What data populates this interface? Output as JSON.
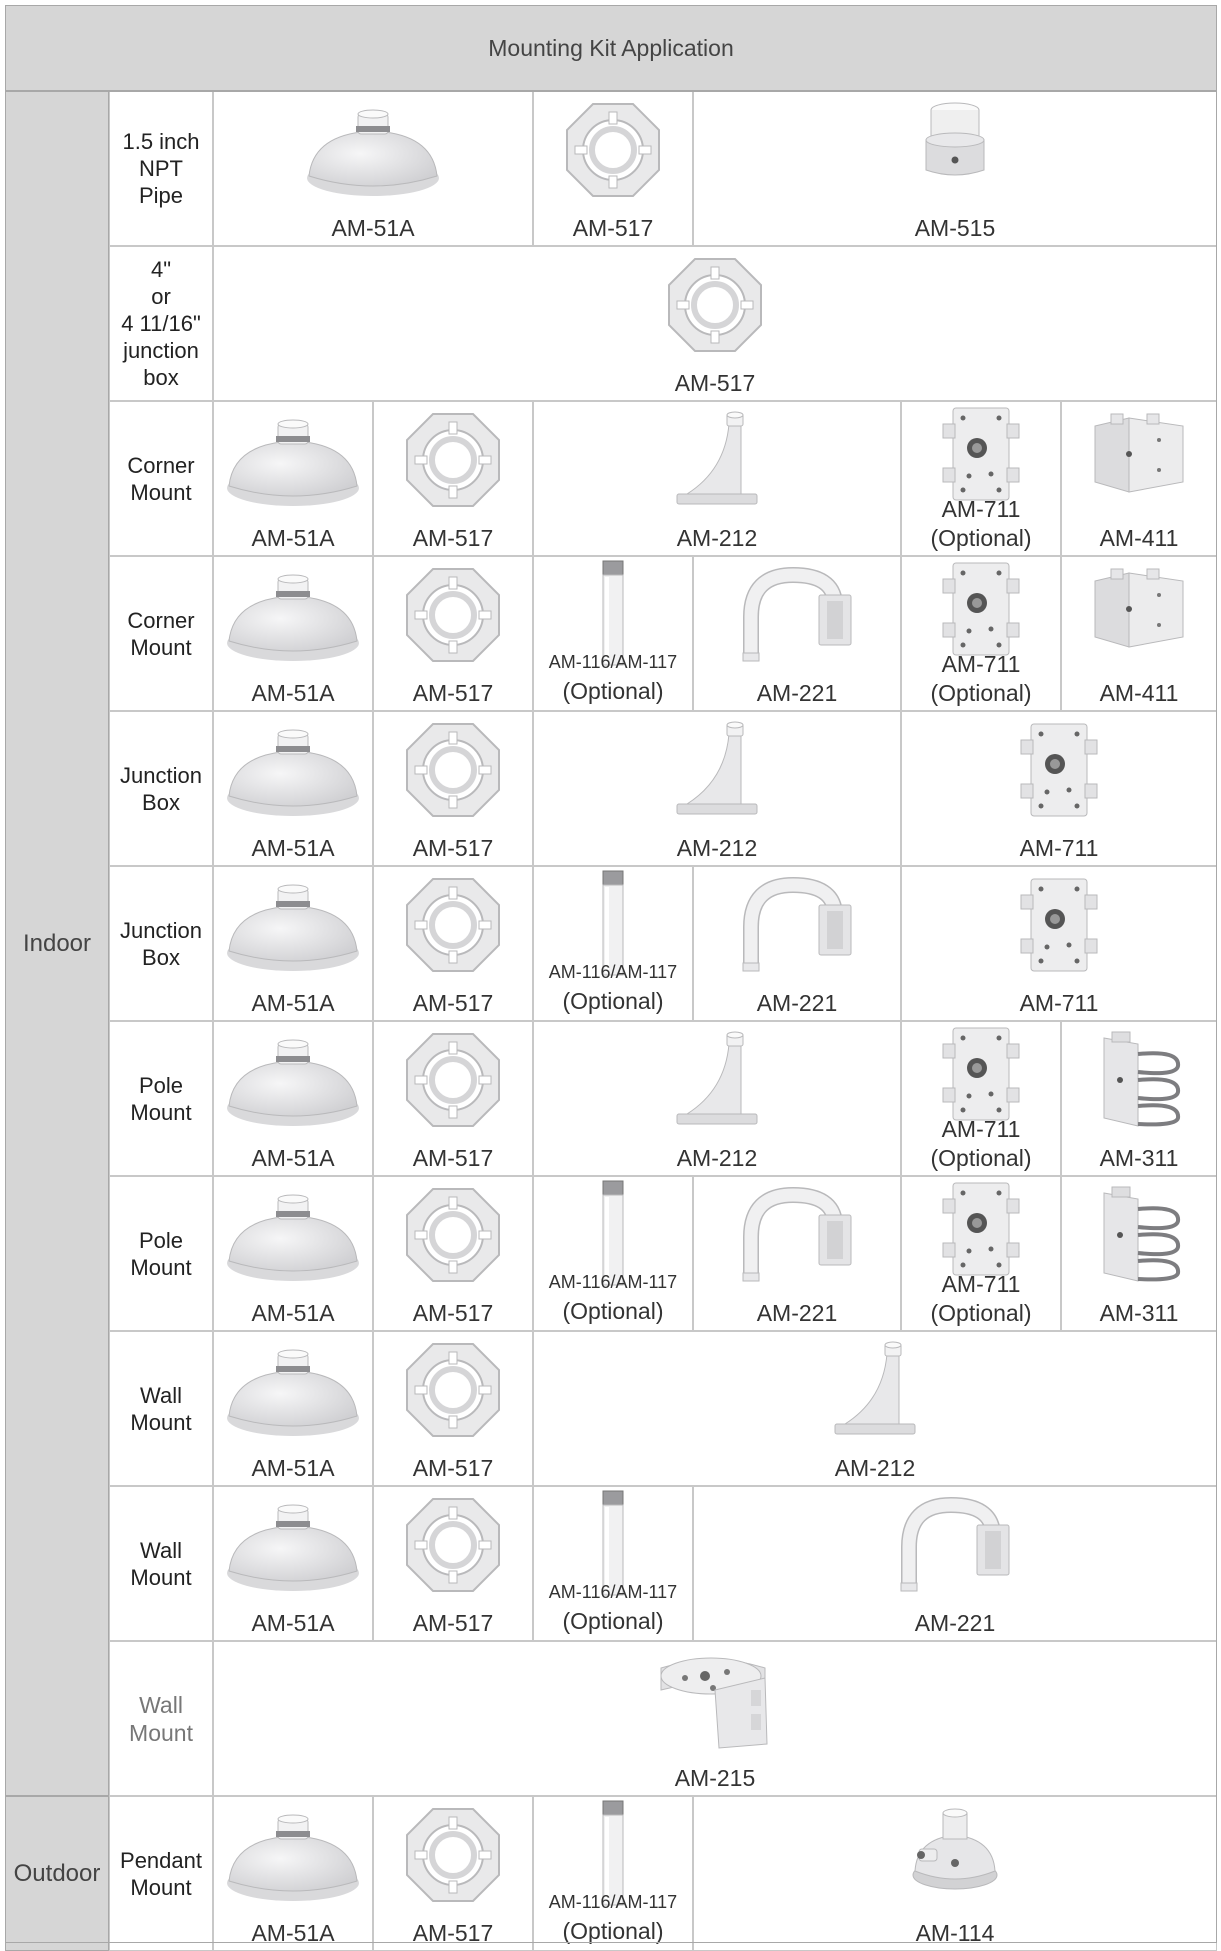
{
  "title": "Mounting Kit Application",
  "regions": [
    {
      "label": "Indoor",
      "start_row": 0,
      "row_count": 11
    },
    {
      "label": "Outdoor",
      "start_row": 11,
      "row_count": 1
    }
  ],
  "rows": [
    {
      "label": "1.5 inch\nNPT\nPipe",
      "cells": [
        {
          "col": 2,
          "span": 2,
          "icon": "pendant-cap",
          "caption": "AM-51A"
        },
        {
          "col": 4,
          "span": 1,
          "icon": "ring-plate",
          "caption": "AM-517"
        },
        {
          "col": 5,
          "span": 5,
          "icon": "pipe-adapter",
          "caption": "AM-515"
        }
      ]
    },
    {
      "label": "4\"\nor\n4 11/16\"\njunction\nbox",
      "cells": [
        {
          "col": 2,
          "span": 8,
          "icon": "ring-plate",
          "caption": "AM-517"
        }
      ]
    },
    {
      "label": "Corner\nMount",
      "cells": [
        {
          "col": 2,
          "span": 1,
          "icon": "pendant-cap",
          "caption": "AM-51A"
        },
        {
          "col": 3,
          "span": 1,
          "icon": "ring-plate",
          "caption": "AM-517"
        },
        {
          "col": 4,
          "span": 2,
          "icon": "wall-arm",
          "caption": "AM-212"
        },
        {
          "col": 6,
          "span": 2,
          "icon": "junction-box",
          "caption": "AM-711",
          "note": "(Optional)"
        },
        {
          "col": 8,
          "span": 2,
          "icon": "corner-bracket",
          "caption": "AM-411"
        }
      ]
    },
    {
      "label": "Corner\nMount",
      "cells": [
        {
          "col": 2,
          "span": 1,
          "icon": "pendant-cap",
          "caption": "AM-51A"
        },
        {
          "col": 3,
          "span": 1,
          "icon": "ring-plate",
          "caption": "AM-517"
        },
        {
          "col": 4,
          "span": 1,
          "icon": "extension-pipe",
          "caption": "AM-116/AM-117",
          "note": "(Optional)"
        },
        {
          "col": 5,
          "span": 1,
          "icon": "gooseneck-arm",
          "caption": "AM-221"
        },
        {
          "col": 6,
          "span": 2,
          "icon": "junction-box",
          "caption": "AM-711",
          "note": "(Optional)"
        },
        {
          "col": 8,
          "span": 2,
          "icon": "corner-bracket",
          "caption": "AM-411"
        }
      ]
    },
    {
      "label": "Junction\nBox",
      "cells": [
        {
          "col": 2,
          "span": 1,
          "icon": "pendant-cap",
          "caption": "AM-51A"
        },
        {
          "col": 3,
          "span": 1,
          "icon": "ring-plate",
          "caption": "AM-517"
        },
        {
          "col": 4,
          "span": 2,
          "icon": "wall-arm",
          "caption": "AM-212"
        },
        {
          "col": 6,
          "span": 4,
          "icon": "junction-box",
          "caption": "AM-711"
        }
      ]
    },
    {
      "label": "Junction\nBox",
      "cells": [
        {
          "col": 2,
          "span": 1,
          "icon": "pendant-cap",
          "caption": "AM-51A"
        },
        {
          "col": 3,
          "span": 1,
          "icon": "ring-plate",
          "caption": "AM-517"
        },
        {
          "col": 4,
          "span": 1,
          "icon": "extension-pipe",
          "caption": "AM-116/AM-117",
          "note": "(Optional)"
        },
        {
          "col": 5,
          "span": 1,
          "icon": "gooseneck-arm",
          "caption": "AM-221"
        },
        {
          "col": 6,
          "span": 4,
          "icon": "junction-box",
          "caption": "AM-711"
        }
      ]
    },
    {
      "label": "Pole\nMount",
      "cells": [
        {
          "col": 2,
          "span": 1,
          "icon": "pendant-cap",
          "caption": "AM-51A"
        },
        {
          "col": 3,
          "span": 1,
          "icon": "ring-plate",
          "caption": "AM-517"
        },
        {
          "col": 4,
          "span": 2,
          "icon": "wall-arm",
          "caption": "AM-212"
        },
        {
          "col": 6,
          "span": 2,
          "icon": "junction-box",
          "caption": "AM-711",
          "note": "(Optional)"
        },
        {
          "col": 8,
          "span": 2,
          "icon": "pole-bracket",
          "caption": "AM-311"
        }
      ]
    },
    {
      "label": "Pole\nMount",
      "cells": [
        {
          "col": 2,
          "span": 1,
          "icon": "pendant-cap",
          "caption": "AM-51A"
        },
        {
          "col": 3,
          "span": 1,
          "icon": "ring-plate",
          "caption": "AM-517"
        },
        {
          "col": 4,
          "span": 1,
          "icon": "extension-pipe",
          "caption": "AM-116/AM-117",
          "note": "(Optional)"
        },
        {
          "col": 5,
          "span": 1,
          "icon": "gooseneck-arm",
          "caption": "AM-221"
        },
        {
          "col": 6,
          "span": 2,
          "icon": "junction-box",
          "caption": "AM-711",
          "note": "(Optional)"
        },
        {
          "col": 8,
          "span": 2,
          "icon": "pole-bracket",
          "caption": "AM-311"
        }
      ]
    },
    {
      "label": "Wall\nMount",
      "cells": [
        {
          "col": 2,
          "span": 1,
          "icon": "pendant-cap",
          "caption": "AM-51A"
        },
        {
          "col": 3,
          "span": 1,
          "icon": "ring-plate",
          "caption": "AM-517"
        },
        {
          "col": 4,
          "span": 6,
          "icon": "wall-arm",
          "caption": "AM-212"
        }
      ]
    },
    {
      "label": "Wall\nMount",
      "cells": [
        {
          "col": 2,
          "span": 1,
          "icon": "pendant-cap",
          "caption": "AM-51A"
        },
        {
          "col": 3,
          "span": 1,
          "icon": "ring-plate",
          "caption": "AM-517"
        },
        {
          "col": 4,
          "span": 1,
          "icon": "extension-pipe",
          "caption": "AM-116/AM-117",
          "note": "(Optional)"
        },
        {
          "col": 5,
          "span": 5,
          "icon": "gooseneck-arm",
          "caption": "AM-221"
        }
      ]
    },
    {
      "label": "Wall\nMount",
      "label_style": "gray",
      "cells": [
        {
          "col": 2,
          "span": 8,
          "icon": "wall-bracket",
          "caption": "AM-215"
        }
      ]
    },
    {
      "label": "Pendant\nMount",
      "cells": [
        {
          "col": 2,
          "span": 1,
          "icon": "pendant-cap",
          "caption": "AM-51A"
        },
        {
          "col": 3,
          "span": 1,
          "icon": "ring-plate",
          "caption": "AM-517"
        },
        {
          "col": 4,
          "span": 1,
          "icon": "extension-pipe",
          "caption": "AM-116/AM-117",
          "note": "(Optional)"
        },
        {
          "col": 5,
          "span": 5,
          "icon": "pendant-dome",
          "caption": "AM-114"
        }
      ]
    }
  ]
}
